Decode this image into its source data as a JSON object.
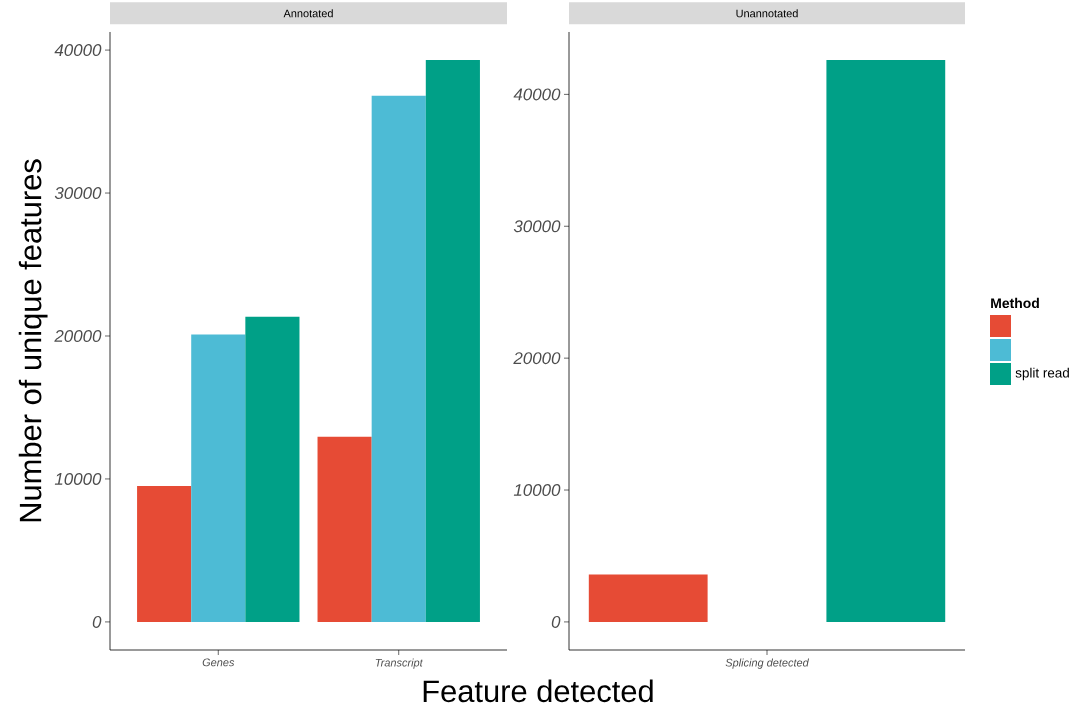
{
  "chart_data": [
    {
      "type": "bar",
      "title": "Annotated",
      "xlabel": "Feature detected",
      "ylabel": "Number of unique features",
      "categories": [
        "Genes",
        "Transcript"
      ],
      "series": [
        {
          "color": "#e64b35",
          "values": [
            9500,
            12950
          ]
        },
        {
          "color": "#4dbbd5",
          "values": [
            20100,
            36800
          ]
        },
        {
          "color": "#00a087",
          "values": [
            21350,
            39300
          ]
        }
      ],
      "ylim": [
        -1965,
        41265
      ],
      "yticks": [
        0,
        10000,
        20000,
        30000,
        40000
      ]
    },
    {
      "type": "bar",
      "title": "Unannotated",
      "categories": [
        "Splicing detected"
      ],
      "legend": "right",
      "legend_title": "Method",
      "series": [
        {
          "color": "#e64b35",
          "values": [
            3600
          ]
        },
        {
          "color": "#4dbbd5",
          "values": [
            null
          ]
        },
        {
          "name": "split read",
          "color": "#00a087",
          "values": [
            42600
          ]
        }
      ],
      "ylim": [
        -2130,
        44730
      ],
      "yticks": [
        0,
        10000,
        20000,
        30000,
        40000
      ]
    }
  ]
}
